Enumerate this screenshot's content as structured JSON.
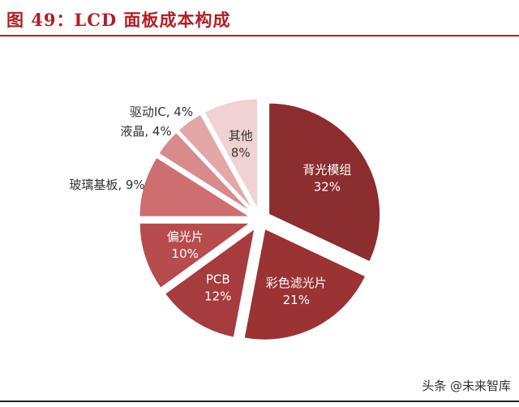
{
  "header": {
    "title": "图 49：LCD 面板成本构成"
  },
  "watermark": {
    "text": "头条 @未来智库"
  },
  "chart_data": {
    "type": "pie",
    "title": "图 49：LCD 面板成本构成",
    "unit": "%",
    "slices": [
      {
        "label": "背光模组",
        "value": 32,
        "value_text": "32%",
        "color": "#8c2d2f",
        "label_inside": true
      },
      {
        "label": "彩色滤光片",
        "value": 21,
        "value_text": "21%",
        "color": "#9b3234",
        "label_inside": true
      },
      {
        "label": "PCB",
        "value": 12,
        "value_text": "12%",
        "color": "#a63c3e",
        "label_inside": true
      },
      {
        "label": "偏光片",
        "value": 10,
        "value_text": "10%",
        "color": "#b64c4e",
        "label_inside": true
      },
      {
        "label": "玻璃基板",
        "value": 9,
        "value_text": "9%",
        "color": "#cf6e70",
        "label_inside": false
      },
      {
        "label": "液晶",
        "value": 4,
        "value_text": "4%",
        "color": "#d98a8c",
        "label_inside": false
      },
      {
        "label": "驱动IC",
        "value": 4,
        "value_text": "4%",
        "color": "#e4a7a8",
        "label_inside": false
      },
      {
        "label": "其他",
        "value": 8,
        "value_text": "8%",
        "color": "#f0d2d2",
        "label_inside": true
      }
    ]
  }
}
